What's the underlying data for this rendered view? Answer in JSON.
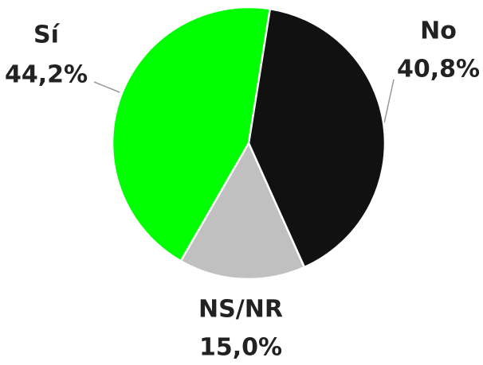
{
  "chart_data": {
    "type": "pie",
    "categories": [
      "No",
      "NS/NR",
      "Sí"
    ],
    "values": [
      40.8,
      15.0,
      44.2
    ],
    "value_labels": [
      "40,8%",
      "15,0%",
      "44,2%"
    ],
    "colors": [
      "#111111",
      "#c0c0c0",
      "#00ff00"
    ]
  }
}
